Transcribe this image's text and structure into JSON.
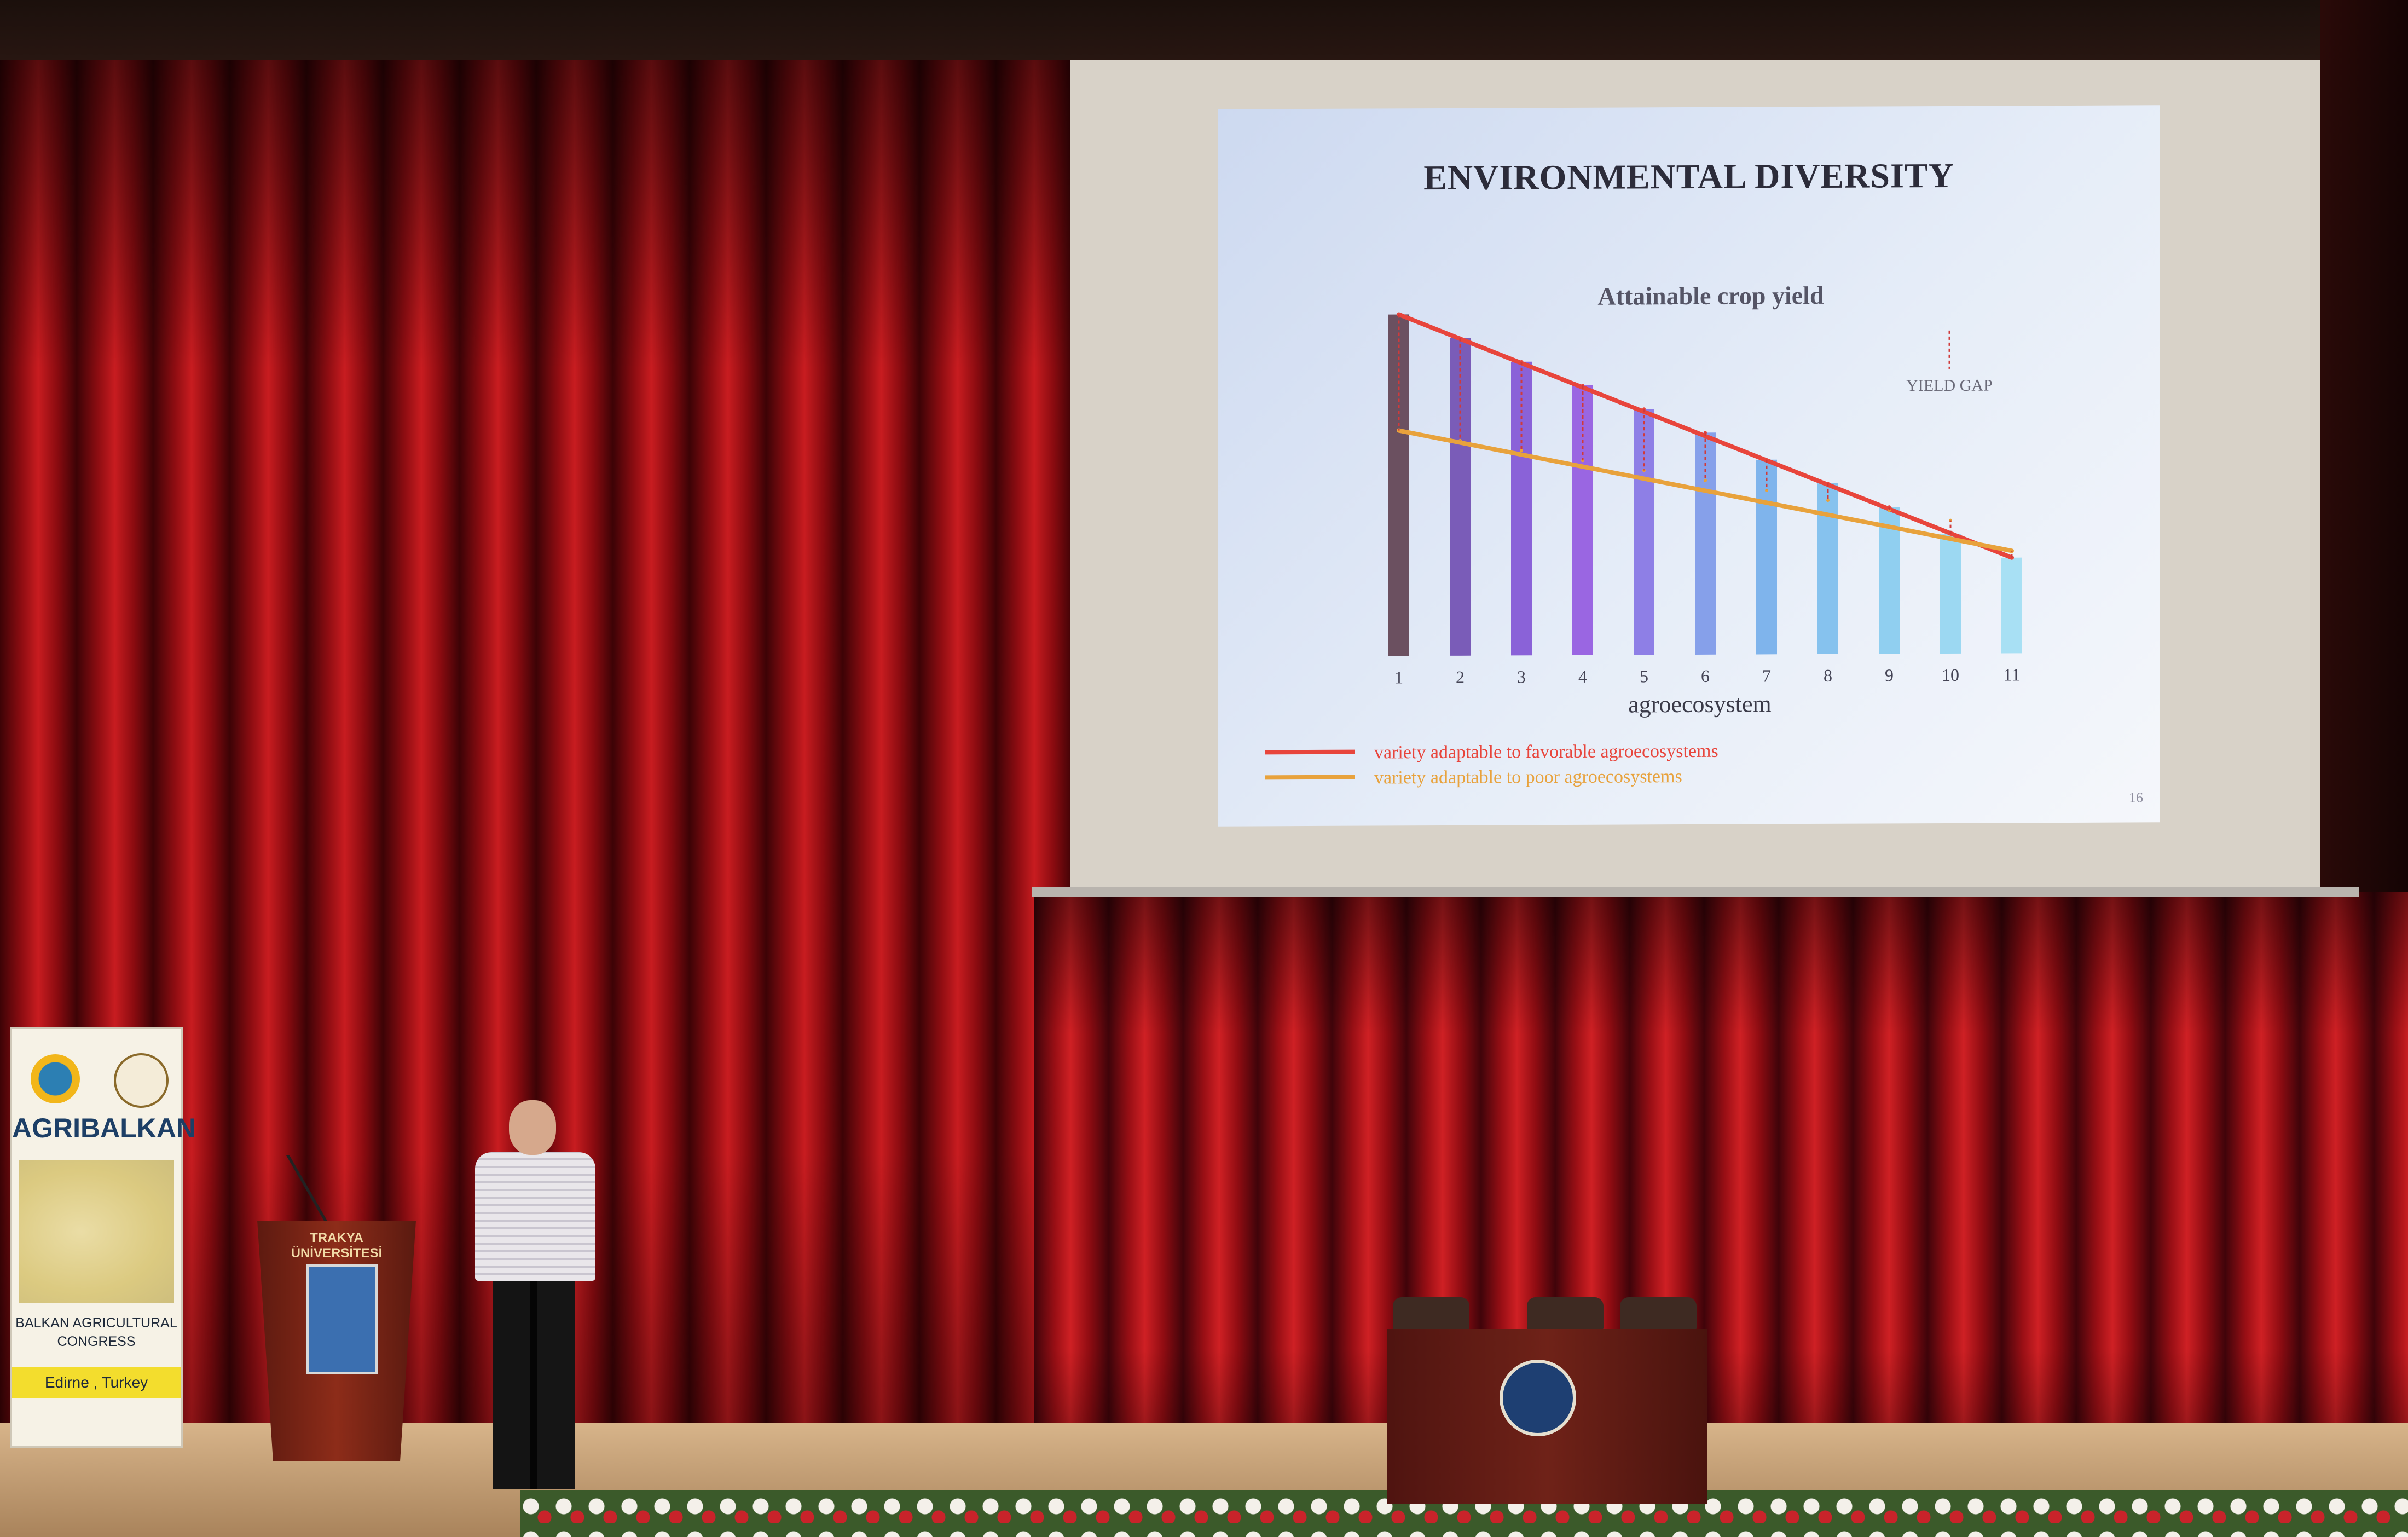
{
  "slide": {
    "title": "ENVIRONMENTAL DIVERSITY",
    "slide_number": "16"
  },
  "chart_data": {
    "type": "bar",
    "title": "Attainable crop yield",
    "xlabel": "agroecosystem",
    "ylabel": "",
    "categories": [
      "1",
      "2",
      "3",
      "4",
      "5",
      "6",
      "7",
      "8",
      "9",
      "10",
      "11"
    ],
    "values": [
      100,
      93,
      86,
      79,
      72,
      65,
      57,
      50,
      43,
      35,
      28
    ],
    "ylim": [
      0,
      105
    ],
    "bar_colors": [
      "#6b5060",
      "#7a5cb8",
      "#8a62d8",
      "#9a66e2",
      "#8e7fe6",
      "#86a0ea",
      "#7fb4ec",
      "#86c2ee",
      "#90cff0",
      "#9cd8f2",
      "#a8e0f4"
    ],
    "series": [
      {
        "name": "variety adaptable to favorable agroecosystems",
        "color": "#e8453c",
        "values": [
          100,
          93,
          86,
          79,
          72,
          65,
          57,
          50,
          43,
          35,
          28
        ]
      },
      {
        "name": "variety adaptable to poor agroecosystems",
        "color": "#e8a23c",
        "values": [
          66,
          63,
          60,
          57,
          54,
          51,
          48,
          45,
          42,
          39,
          30
        ]
      }
    ],
    "annotation": "YIELD GAP",
    "legend_position": "bottom-left"
  },
  "banner": {
    "title": "AGRIBALKAN",
    "subtitle_line1": "BALKAN AGRICULTURAL",
    "subtitle_line2": "CONGRESS",
    "location": "Edirne , Turkey"
  },
  "podium": {
    "line1": "TRAKYA",
    "line2": "ÜNİVERSİTESİ"
  },
  "colors": {
    "curtain": "#b5161b",
    "screen_frame": "#d8d2c8",
    "slide_background": "#dfe7f5"
  }
}
